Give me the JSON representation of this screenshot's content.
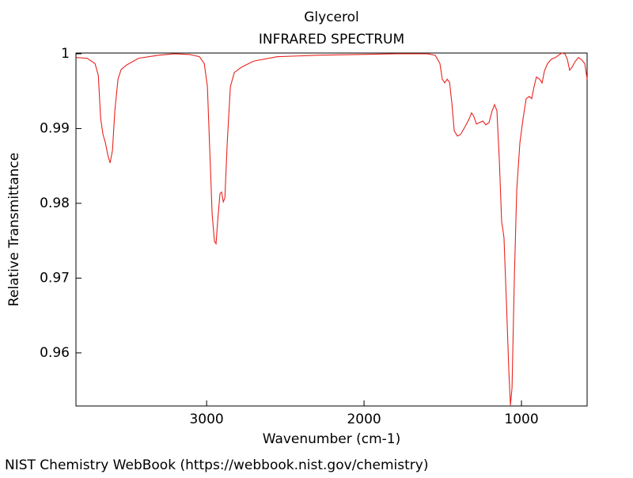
{
  "chart_data": {
    "type": "line",
    "title": "Glycerol",
    "subtitle": "INFRARED SPECTRUM",
    "xlabel": "Wavenumber (cm-1)",
    "ylabel": "Relative Transmittance",
    "source": "NIST Chemistry WebBook (https://webbook.nist.gov/chemistry)",
    "xlim": [
      3830,
      583
    ],
    "ylim": [
      0.9529,
      1.0001
    ],
    "xticks": [
      3000,
      2000,
      1000
    ],
    "yticks": [
      1,
      0.99,
      0.98,
      0.97,
      0.96
    ],
    "x": [
      3829,
      3759,
      3709,
      3688,
      3673,
      3658,
      3643,
      3628,
      3613,
      3598,
      3583,
      3563,
      3543,
      3508,
      3432,
      3307,
      3206,
      3106,
      3045,
      3015,
      2995,
      2980,
      2965,
      2950,
      2940,
      2930,
      2915,
      2905,
      2894,
      2884,
      2869,
      2849,
      2824,
      2779,
      2704,
      2553,
      2302,
      2050,
      1799,
      1598,
      1548,
      1518,
      1503,
      1487,
      1472,
      1457,
      1442,
      1427,
      1407,
      1387,
      1357,
      1332,
      1317,
      1302,
      1286,
      1266,
      1246,
      1226,
      1206,
      1186,
      1171,
      1156,
      1141,
      1126,
      1111,
      1096,
      1080,
      1070,
      1060,
      1045,
      1030,
      1010,
      990,
      970,
      950,
      935,
      920,
      905,
      885,
      869,
      854,
      834,
      809,
      784,
      764,
      744,
      724,
      709,
      694,
      679,
      658,
      638,
      618,
      598,
      583
    ],
    "series": [
      {
        "color": "#e8231e",
        "values": [
          0.9995,
          0.9994,
          0.9987,
          0.9971,
          0.9913,
          0.9892,
          0.9881,
          0.9865,
          0.9854,
          0.9871,
          0.9924,
          0.9966,
          0.9979,
          0.9985,
          0.9994,
          0.9998,
          1.0,
          0.9999,
          0.9996,
          0.9987,
          0.9956,
          0.9871,
          0.9786,
          0.9749,
          0.9746,
          0.9776,
          0.9813,
          0.9815,
          0.9802,
          0.9807,
          0.9881,
          0.9956,
          0.9975,
          0.9982,
          0.999,
          0.9996,
          0.9998,
          0.9999,
          1.0,
          1.0,
          0.9998,
          0.9987,
          0.9966,
          0.9961,
          0.9966,
          0.9962,
          0.9934,
          0.9897,
          0.989,
          0.9892,
          0.9903,
          0.9913,
          0.9921,
          0.9916,
          0.9906,
          0.9908,
          0.991,
          0.9905,
          0.9908,
          0.9924,
          0.9932,
          0.9924,
          0.986,
          0.9776,
          0.9754,
          0.967,
          0.9575,
          0.953,
          0.9553,
          0.9702,
          0.9818,
          0.9881,
          0.9913,
          0.994,
          0.9943,
          0.994,
          0.9956,
          0.9969,
          0.9966,
          0.9961,
          0.9977,
          0.9987,
          0.9993,
          0.9995,
          0.9998,
          1.0001,
          1.0,
          0.9993,
          0.9978,
          0.9982,
          0.999,
          0.9995,
          0.9992,
          0.9987,
          0.9966
        ]
      }
    ]
  }
}
